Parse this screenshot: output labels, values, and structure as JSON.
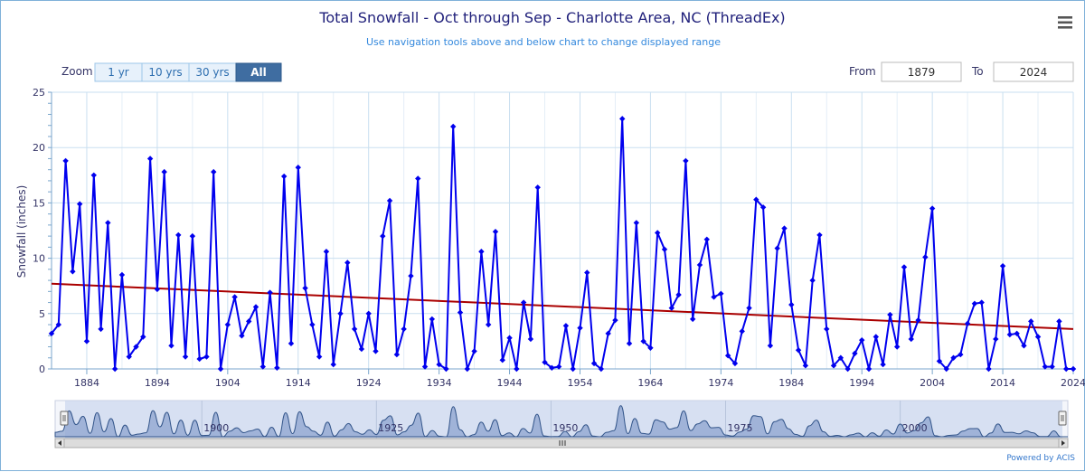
{
  "chart_data": {
    "type": "line",
    "title": "Total Snowfall - Oct through Sep - Charlotte Area, NC (ThreadEx)",
    "subtitle": "Use navigation tools above and below chart to change displayed range",
    "ylabel": "Snowfall (inches)",
    "xlabel": "",
    "xlim": [
      1879,
      2024
    ],
    "ylim": [
      0,
      25
    ],
    "yticks": [
      0,
      5,
      10,
      15,
      20,
      25
    ],
    "xticks": [
      1884,
      1894,
      1904,
      1914,
      1924,
      1934,
      1944,
      1954,
      1964,
      1974,
      1984,
      1994,
      2004,
      2014,
      2024
    ],
    "grid": true,
    "x": [
      1879,
      1880,
      1881,
      1882,
      1883,
      1884,
      1885,
      1886,
      1887,
      1888,
      1889,
      1890,
      1891,
      1892,
      1893,
      1894,
      1895,
      1896,
      1897,
      1898,
      1899,
      1900,
      1901,
      1902,
      1903,
      1904,
      1905,
      1906,
      1907,
      1908,
      1909,
      1910,
      1911,
      1912,
      1913,
      1914,
      1915,
      1916,
      1917,
      1918,
      1919,
      1920,
      1921,
      1922,
      1923,
      1924,
      1925,
      1926,
      1927,
      1928,
      1929,
      1930,
      1931,
      1932,
      1933,
      1934,
      1935,
      1936,
      1937,
      1938,
      1939,
      1940,
      1941,
      1942,
      1943,
      1944,
      1945,
      1946,
      1947,
      1948,
      1949,
      1950,
      1951,
      1952,
      1953,
      1954,
      1955,
      1956,
      1957,
      1958,
      1959,
      1960,
      1961,
      1962,
      1963,
      1964,
      1965,
      1966,
      1967,
      1968,
      1969,
      1970,
      1971,
      1972,
      1973,
      1974,
      1975,
      1976,
      1977,
      1978,
      1979,
      1980,
      1981,
      1982,
      1983,
      1984,
      1985,
      1986,
      1987,
      1988,
      1989,
      1990,
      1991,
      1992,
      1993,
      1994,
      1995,
      1996,
      1997,
      1998,
      1999,
      2000,
      2001,
      2002,
      2003,
      2004,
      2005,
      2006,
      2007,
      2008,
      2009,
      2010,
      2011,
      2012,
      2013,
      2014,
      2015,
      2016,
      2017,
      2018,
      2019,
      2020,
      2021,
      2022,
      2023,
      2024
    ],
    "series": [
      {
        "name": "Snowfall",
        "color": "#0000ee",
        "values": [
          3.2,
          4.0,
          18.8,
          8.8,
          14.9,
          2.5,
          17.5,
          3.6,
          13.2,
          0.0,
          8.5,
          1.1,
          2.0,
          2.9,
          19.0,
          7.2,
          17.8,
          2.1,
          12.1,
          1.1,
          12.0,
          0.9,
          1.1,
          17.8,
          0.0,
          4.0,
          6.5,
          3.0,
          4.3,
          5.6,
          0.2,
          6.9,
          0.1,
          17.4,
          2.3,
          18.2,
          7.3,
          4.0,
          1.1,
          10.6,
          0.4,
          5.0,
          9.6,
          3.6,
          1.8,
          5.0,
          1.6,
          12.0,
          15.2,
          1.3,
          3.6,
          8.4,
          17.2,
          0.2,
          4.5,
          0.4,
          0.0,
          21.9,
          5.1,
          0.0,
          1.6,
          10.6,
          4.0,
          12.4,
          0.8,
          2.8,
          0.0,
          6.0,
          2.7,
          16.4,
          0.6,
          0.1,
          0.2,
          3.9,
          0.0,
          3.7,
          8.7,
          0.5,
          0.0,
          3.2,
          4.4,
          22.6,
          2.3,
          13.2,
          2.5,
          1.9,
          12.3,
          10.8,
          5.5,
          6.7,
          18.8,
          4.5,
          9.4,
          11.7,
          6.5,
          6.8,
          1.2,
          0.5,
          3.4,
          5.5,
          15.3,
          14.6,
          2.1,
          10.9,
          12.7,
          5.8,
          1.7,
          0.3,
          8.0,
          12.1,
          3.6,
          0.3,
          1.0,
          0.0,
          1.4,
          2.6,
          0.0,
          2.9,
          0.4,
          4.9,
          2.0,
          9.2,
          2.7,
          4.4,
          10.1,
          14.5,
          0.7,
          0.0,
          1.0,
          1.3,
          4.1,
          5.9,
          6.0,
          0.0,
          2.7,
          9.3,
          3.1,
          3.2,
          2.1,
          4.3,
          2.9,
          0.2,
          0.2,
          4.3,
          0.0,
          0.0
        ]
      },
      {
        "name": "Trend",
        "color": "#aa0000",
        "x": [
          1879,
          2024
        ],
        "values": [
          7.7,
          3.6
        ]
      }
    ]
  },
  "ui": {
    "zoom_label": "Zoom",
    "zoom_buttons": [
      "1 yr",
      "10 yrs",
      "30 yrs",
      "All"
    ],
    "from_label": "From",
    "from_value": "1879",
    "to_label": "To",
    "to_value": "2024",
    "menu_icon": "hamburger-menu-icon",
    "navigator_labels": [
      "1900",
      "1925",
      "1950",
      "1975",
      "2000"
    ],
    "credit": "Powered by ACIS"
  }
}
